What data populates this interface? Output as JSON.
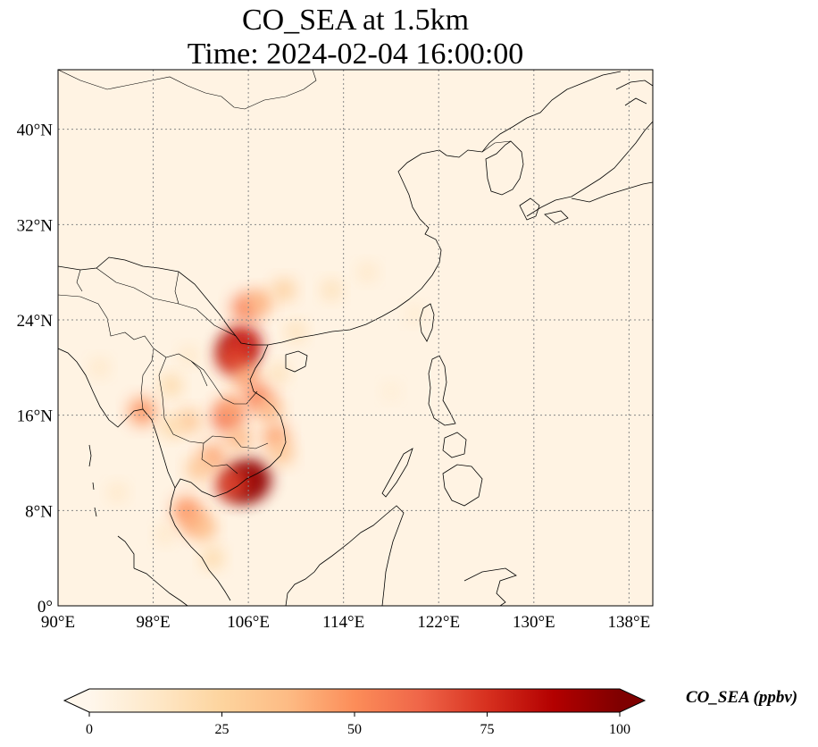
{
  "title": {
    "line1": "CO_SEA at 1.5km",
    "line2": "Time: 2024-02-04 16:00:00"
  },
  "map": {
    "projection": "PlateCarree",
    "lon_range": [
      90,
      140
    ],
    "lat_range": [
      0,
      45
    ],
    "gridlines": "dotted",
    "x_ticks": [
      {
        "lon": 90,
        "label": "90°E"
      },
      {
        "lon": 98,
        "label": "98°E"
      },
      {
        "lon": 106,
        "label": "106°E"
      },
      {
        "lon": 114,
        "label": "114°E"
      },
      {
        "lon": 122,
        "label": "122°E"
      },
      {
        "lon": 130,
        "label": "130°E"
      },
      {
        "lon": 138,
        "label": "138°E"
      }
    ],
    "y_ticks": [
      {
        "lat": 0,
        "label": "0°"
      },
      {
        "lat": 8,
        "label": "8°N"
      },
      {
        "lat": 16,
        "label": "16°N"
      },
      {
        "lat": 24,
        "label": "24°N"
      },
      {
        "lat": 32,
        "label": "32°N"
      },
      {
        "lat": 40,
        "label": "40°N"
      }
    ],
    "background_value": 3,
    "hotspots": [
      {
        "lon": 105.5,
        "lat": 10.3,
        "value": 100
      },
      {
        "lon": 106.3,
        "lat": 10.6,
        "value": 95
      },
      {
        "lon": 104.6,
        "lat": 10.2,
        "value": 70
      },
      {
        "lon": 105.0,
        "lat": 21.4,
        "value": 95
      },
      {
        "lon": 105.6,
        "lat": 22.0,
        "value": 80
      },
      {
        "lon": 104.8,
        "lat": 20.8,
        "value": 70
      },
      {
        "lon": 105.8,
        "lat": 19.2,
        "value": 45
      },
      {
        "lon": 106.8,
        "lat": 17.5,
        "value": 55
      },
      {
        "lon": 107.8,
        "lat": 16.5,
        "value": 40
      },
      {
        "lon": 108.3,
        "lat": 14.2,
        "value": 45
      },
      {
        "lon": 108.8,
        "lat": 12.8,
        "value": 35
      },
      {
        "lon": 104.2,
        "lat": 15.8,
        "value": 60
      },
      {
        "lon": 104.6,
        "lat": 16.5,
        "value": 45
      },
      {
        "lon": 105.2,
        "lat": 14.0,
        "value": 40
      },
      {
        "lon": 103.0,
        "lat": 12.5,
        "value": 45
      },
      {
        "lon": 101.8,
        "lat": 11.5,
        "value": 35
      },
      {
        "lon": 100.8,
        "lat": 8.0,
        "value": 50
      },
      {
        "lon": 101.5,
        "lat": 7.0,
        "value": 45
      },
      {
        "lon": 102.3,
        "lat": 6.5,
        "value": 35
      },
      {
        "lon": 97.1,
        "lat": 16.3,
        "value": 50
      },
      {
        "lon": 101.0,
        "lat": 15.5,
        "value": 35
      },
      {
        "lon": 99.5,
        "lat": 15.0,
        "value": 25
      },
      {
        "lon": 99.5,
        "lat": 18.5,
        "value": 25
      },
      {
        "lon": 105.8,
        "lat": 25.0,
        "value": 55
      },
      {
        "lon": 107.0,
        "lat": 25.5,
        "value": 40
      },
      {
        "lon": 109.0,
        "lat": 26.5,
        "value": 30
      },
      {
        "lon": 113.0,
        "lat": 26.5,
        "value": 20
      },
      {
        "lon": 116.0,
        "lat": 28.0,
        "value": 15
      },
      {
        "lon": 110.0,
        "lat": 23.0,
        "value": 20
      },
      {
        "lon": 108.5,
        "lat": 19.5,
        "value": 20
      },
      {
        "lon": 103.0,
        "lat": 4.0,
        "value": 25
      },
      {
        "lon": 99.0,
        "lat": 6.0,
        "value": 15
      },
      {
        "lon": 95.0,
        "lat": 9.5,
        "value": 15
      },
      {
        "lon": 93.5,
        "lat": 20.0,
        "value": 15
      },
      {
        "lon": 101.0,
        "lat": 21.0,
        "value": 15
      },
      {
        "lon": 120.0,
        "lat": 24.5,
        "value": 12
      },
      {
        "lon": 118.0,
        "lat": 18.0,
        "value": 10
      }
    ]
  },
  "colorbar": {
    "label": "CO_SEA (ppbv)",
    "range": [
      0,
      100
    ],
    "extend": "both",
    "cmap": "OrRd",
    "stops": [
      "#fff7ec",
      "#fee8c8",
      "#fdd49e",
      "#fdbb84",
      "#fc8d59",
      "#ef6548",
      "#d7301f",
      "#b30000",
      "#7f0000"
    ],
    "ticks": [
      {
        "value": 0,
        "label": "0"
      },
      {
        "value": 25,
        "label": "25"
      },
      {
        "value": 50,
        "label": "50"
      },
      {
        "value": 75,
        "label": "75"
      },
      {
        "value": 100,
        "label": "100"
      }
    ]
  }
}
